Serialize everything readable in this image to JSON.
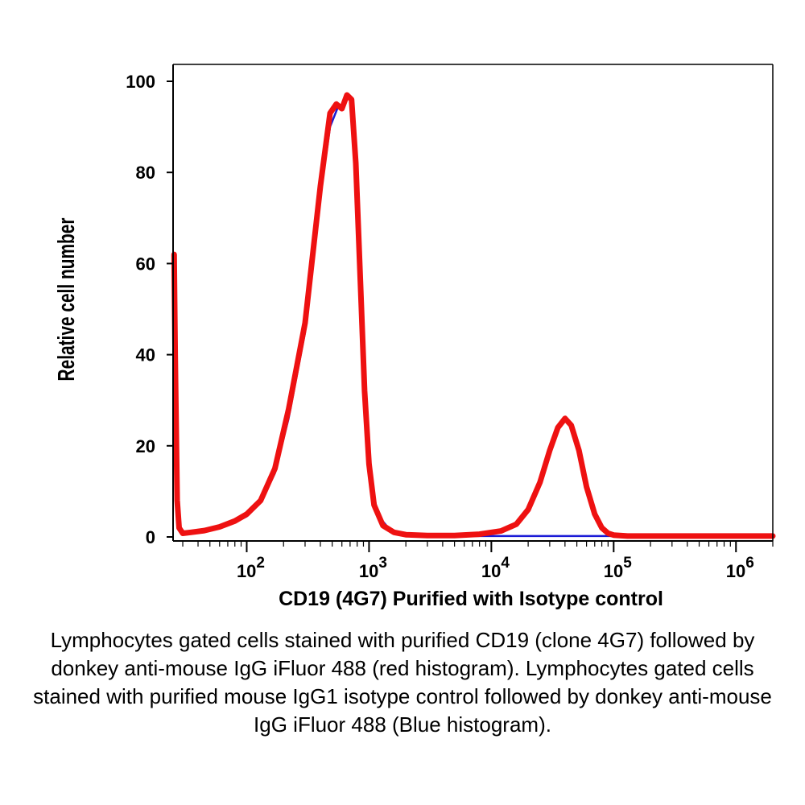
{
  "chart_data": {
    "type": "line",
    "xlabel": "CD19 (4G7) Purified with Isotype control",
    "ylabel": "Relative cell number",
    "x_scale": "log",
    "xlim": [
      25,
      2000000
    ],
    "ylim": [
      0,
      100
    ],
    "y_ticks": [
      0,
      20,
      40,
      60,
      80,
      100
    ],
    "x_ticks": [
      {
        "value": 100,
        "base": "10",
        "exp": "2"
      },
      {
        "value": 1000,
        "base": "10",
        "exp": "3"
      },
      {
        "value": 10000,
        "base": "10",
        "exp": "4"
      },
      {
        "value": 100000,
        "base": "10",
        "exp": "5"
      },
      {
        "value": 1000000,
        "base": "10",
        "exp": "6"
      }
    ],
    "grid": false,
    "series": [
      {
        "color": "#1a1ad6",
        "x": [
          26,
          27,
          30,
          35,
          45,
          60,
          80,
          100,
          130,
          170,
          220,
          300,
          400,
          480,
          550,
          620,
          680,
          740,
          800,
          870,
          950,
          1050,
          1200,
          1500,
          2000,
          3000,
          5000,
          10000,
          50000,
          100000,
          1000000,
          2000000
        ],
        "values": [
          30,
          5,
          0.6,
          0.8,
          1.2,
          2.0,
          3.2,
          4.5,
          7.5,
          14,
          26,
          45,
          75,
          90,
          94,
          95,
          97,
          93,
          78,
          52,
          27,
          11,
          4.5,
          1.4,
          0.6,
          0.3,
          0.2,
          0.2,
          0.2,
          0.2,
          0.2,
          0.2
        ]
      },
      {
        "color": "#ee1111",
        "x": [
          25.5,
          26,
          27,
          28,
          30,
          35,
          45,
          60,
          80,
          100,
          130,
          170,
          220,
          300,
          400,
          480,
          540,
          600,
          660,
          720,
          780,
          850,
          920,
          1000,
          1100,
          1300,
          1600,
          2000,
          3000,
          5000,
          8000,
          12000,
          16000,
          20000,
          25000,
          30000,
          35000,
          40000,
          45000,
          52000,
          60000,
          70000,
          80000,
          90000,
          100000,
          130000,
          200000,
          500000,
          1000000,
          2000000
        ],
        "values": [
          62,
          40,
          8,
          2,
          0.8,
          1.0,
          1.4,
          2.2,
          3.5,
          5,
          8,
          15,
          28,
          47,
          77,
          93,
          95,
          94,
          97,
          96,
          82,
          56,
          32,
          16,
          7,
          2.5,
          1.0,
          0.5,
          0.3,
          0.3,
          0.6,
          1.3,
          2.8,
          6,
          12,
          19,
          24,
          26,
          24.5,
          19,
          11,
          5,
          2,
          0.8,
          0.4,
          0.2,
          0.2,
          0.2,
          0.2,
          0.2
        ]
      }
    ]
  },
  "caption": "Lymphocytes gated cells stained with purified CD19 (clone 4G7) followed by donkey anti-mouse IgG iFluor 488 (red histogram). Lymphocytes gated cells stained with purified mouse IgG1 isotype control followed by donkey anti-mouse IgG iFluor 488 (Blue histogram)."
}
